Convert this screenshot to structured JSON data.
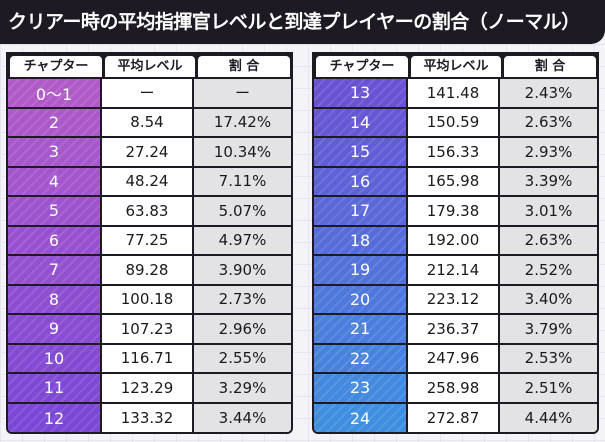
{
  "title": "クリアー時の平均指揮官レベルと到達プレイヤーの割合（ノーマル）",
  "headers": {
    "chapter": "チャプター",
    "avg_level": "平均レベル",
    "ratio": "割 合"
  },
  "colors": {
    "left_chapter_gradient": [
      "#b05ac8",
      "#7b47d6"
    ],
    "right_chapter_gradient": [
      "#6a52d4",
      "#3f8ee0"
    ],
    "header_bg": "#1d1a24"
  },
  "left_rows": [
    {
      "chapter": "0～1",
      "avg": "ー",
      "pct": "ー"
    },
    {
      "chapter": "2",
      "avg": "8.54",
      "pct": "17.42%"
    },
    {
      "chapter": "3",
      "avg": "27.24",
      "pct": "10.34%"
    },
    {
      "chapter": "4",
      "avg": "48.24",
      "pct": "7.11%"
    },
    {
      "chapter": "5",
      "avg": "63.83",
      "pct": "5.07%"
    },
    {
      "chapter": "6",
      "avg": "77.25",
      "pct": "4.97%"
    },
    {
      "chapter": "7",
      "avg": "89.28",
      "pct": "3.90%"
    },
    {
      "chapter": "8",
      "avg": "100.18",
      "pct": "2.73%"
    },
    {
      "chapter": "9",
      "avg": "107.23",
      "pct": "2.96%"
    },
    {
      "chapter": "10",
      "avg": "116.71",
      "pct": "2.55%"
    },
    {
      "chapter": "11",
      "avg": "123.29",
      "pct": "3.29%"
    },
    {
      "chapter": "12",
      "avg": "133.32",
      "pct": "3.44%"
    }
  ],
  "right_rows": [
    {
      "chapter": "13",
      "avg": "141.48",
      "pct": "2.43%"
    },
    {
      "chapter": "14",
      "avg": "150.59",
      "pct": "2.63%"
    },
    {
      "chapter": "15",
      "avg": "156.33",
      "pct": "2.93%"
    },
    {
      "chapter": "16",
      "avg": "165.98",
      "pct": "3.39%"
    },
    {
      "chapter": "17",
      "avg": "179.38",
      "pct": "3.01%"
    },
    {
      "chapter": "18",
      "avg": "192.00",
      "pct": "2.63%"
    },
    {
      "chapter": "19",
      "avg": "212.14",
      "pct": "2.52%"
    },
    {
      "chapter": "20",
      "avg": "223.12",
      "pct": "3.40%"
    },
    {
      "chapter": "21",
      "avg": "236.37",
      "pct": "3.79%"
    },
    {
      "chapter": "22",
      "avg": "247.96",
      "pct": "2.53%"
    },
    {
      "chapter": "23",
      "avg": "258.98",
      "pct": "2.51%"
    },
    {
      "chapter": "24",
      "avg": "272.87",
      "pct": "4.44%"
    }
  ]
}
